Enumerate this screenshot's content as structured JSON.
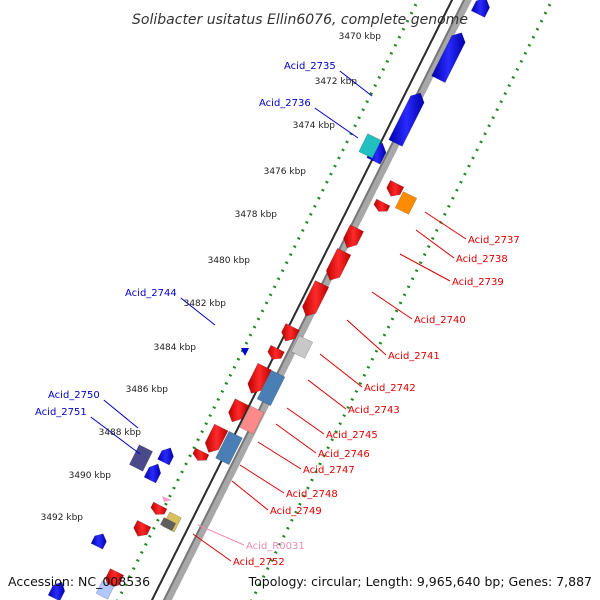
{
  "title": "Solibacter usitatus Ellin6076, complete genome",
  "footer": {
    "accession": "Accession: NC_008536",
    "summary": "Topology: circular; Length: 9,965,640 bp; Genes: 7,887"
  },
  "ticks": [
    "3470 kbp",
    "3472 kbp",
    "3474 kbp",
    "3476 kbp",
    "3478 kbp",
    "3480 kbp",
    "3482 kbp",
    "3484 kbp",
    "3486 kbp",
    "3488 kbp",
    "3490 kbp",
    "3492 kbp"
  ],
  "labels_left": [
    "Acid_2735",
    "Acid_2736",
    "Acid_2744",
    "Acid_2750",
    "Acid_2751"
  ],
  "labels_right": [
    "Acid_2737",
    "Acid_2738",
    "Acid_2739",
    "Acid_2740",
    "Acid_2741",
    "Acid_2742",
    "Acid_2743",
    "Acid_2745",
    "Acid_2746",
    "Acid_2747",
    "Acid_2748",
    "Acid_2749",
    "Acid_R0031",
    "Acid_2752"
  ],
  "colors": {
    "forward_strand": "#0000dd",
    "reverse_strand": "#ee0000",
    "label_forward": "#0000cc",
    "label_reverse": "#dd0000",
    "rna_label": "#f08cb4",
    "backbone": "#888888",
    "dotted_ring": "#228b22"
  }
}
